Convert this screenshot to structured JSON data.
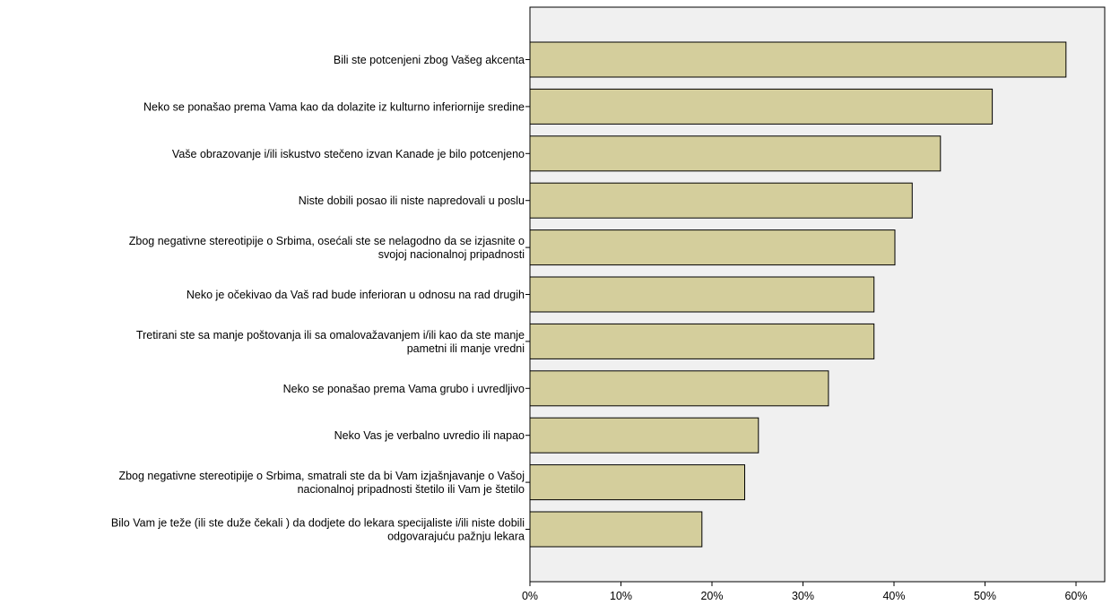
{
  "chart_data": {
    "type": "bar",
    "orientation": "horizontal",
    "categories": [
      [
        "Bili ste potcenjeni zbog Vašeg akcenta"
      ],
      [
        "Neko se ponašao prema Vama kao da dolazite iz kulturno inferiornije sredine"
      ],
      [
        "Vaše obrazovanje i/ili iskustvo stečeno izvan Kanade je bilo potcenjeno"
      ],
      [
        "Niste dobili posao ili niste napredovali u poslu"
      ],
      [
        "Zbog negativne stereotipije o Srbima, osećali ste se nelagodno da se izjasnite o",
        "svojoj nacionalnoj pripadnosti"
      ],
      [
        "Neko je očekivao da Vaš rad bude inferioran u odnosu na rad drugih"
      ],
      [
        "Tretirani ste sa manje poštovanja ili sa omalovažavanjem i/ili kao da ste manje",
        "pametni ili manje vredni"
      ],
      [
        "Neko se ponašao prema Vama grubo i uvredljivo"
      ],
      [
        "Neko Vas je verbalno uvredio ili napao"
      ],
      [
        "Zbog negativne stereotipije o Srbima, smatrali ste da bi Vam izjašnjavanje o Vašoj",
        "nacionalnoj pripadnosti štetilo ili Vam je štetilo"
      ],
      [
        "Bilo Vam je teže (ili ste duže čekali ) da dodjete do lekara specijaliste i/ili niste dobili",
        "odgovarajuću pažnju lekara"
      ]
    ],
    "values": [
      58.9,
      50.8,
      45.1,
      42.0,
      40.1,
      37.8,
      37.8,
      32.8,
      25.1,
      23.6,
      18.9
    ],
    "xticks": [
      "0%",
      "10%",
      "20%",
      "30%",
      "40%",
      "50%",
      "60%"
    ],
    "xlim": [
      0,
      63
    ],
    "grid": false,
    "legend": "none",
    "title": "",
    "xlabel": "",
    "ylabel": "",
    "colors": {
      "bar_fill": "#d4ce9c",
      "bar_stroke": "#000000",
      "plot_background": "#f0f0f0"
    }
  }
}
